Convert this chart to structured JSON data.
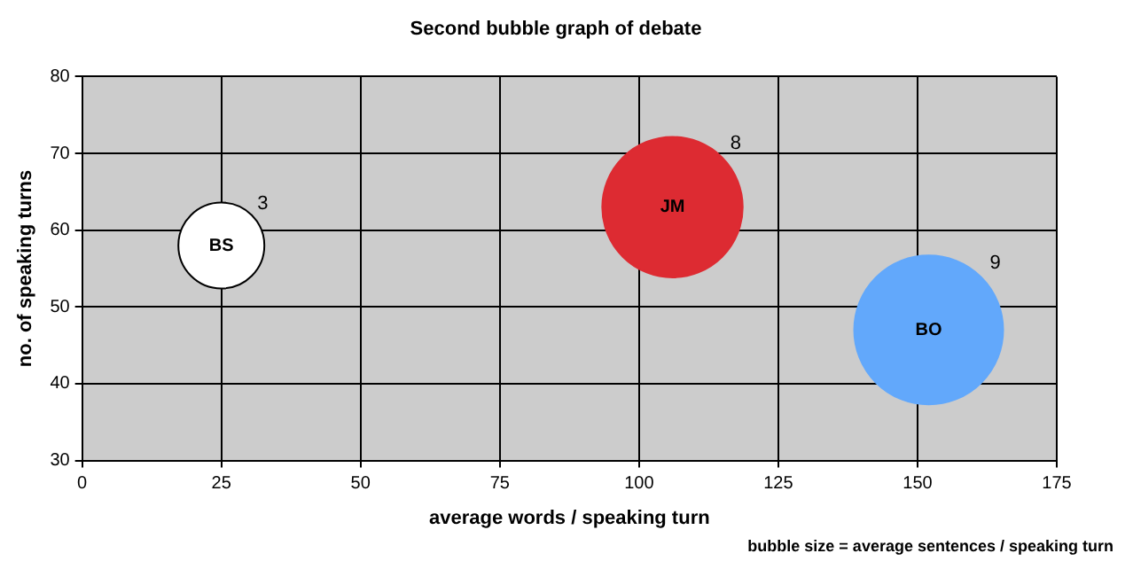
{
  "chart_data": {
    "type": "bubble",
    "title": "Second bubble graph of debate",
    "xlabel": "average words / speaking turn",
    "ylabel": "no. of speaking turns",
    "annotations": [
      "bubble size = average sentences / speaking turn"
    ],
    "series": [
      {
        "name": "BS",
        "color": "#ffffff",
        "x": [
          25
        ],
        "values": [
          58
        ],
        "sizes": [
          3
        ],
        "value_labels": [
          "3"
        ]
      },
      {
        "name": "JM",
        "color": "#dd2b32",
        "x": [
          106
        ],
        "values": [
          63
        ],
        "sizes": [
          8
        ],
        "value_labels": [
          "8"
        ]
      },
      {
        "name": "BO",
        "color": "#62a8fb",
        "x": [
          152
        ],
        "values": [
          47
        ],
        "sizes": [
          9
        ],
        "value_labels": [
          "9"
        ]
      }
    ],
    "xlim": [
      0,
      175
    ],
    "xticks": [
      0,
      25,
      50,
      75,
      100,
      125,
      150,
      175
    ],
    "ylim": [
      30,
      80
    ],
    "yticks": [
      30,
      40,
      50,
      60,
      70,
      80
    ],
    "grid": true,
    "legend": false
  }
}
